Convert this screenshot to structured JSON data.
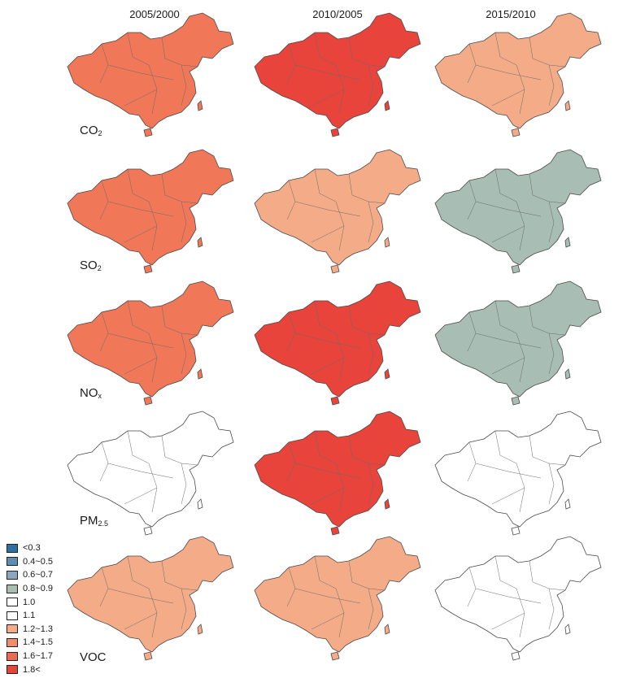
{
  "column_titles": [
    "2005/2000",
    "2010/2005",
    "2015/2010"
  ],
  "rows": [
    {
      "label_main": "CO",
      "label_sub": "2",
      "fills": [
        "#F07858",
        "#E8443B",
        "#F4AC88"
      ]
    },
    {
      "label_main": "SO",
      "label_sub": "2",
      "fills": [
        "#F07858",
        "#F4AC88",
        "#A8BDB3"
      ]
    },
    {
      "label_main": "NO",
      "label_sub": "x",
      "fills": [
        "#F07858",
        "#E8443B",
        "#A8BDB3"
      ]
    },
    {
      "label_main": "PM",
      "label_sub": "2.5",
      "fills": [
        "#FFFFFF",
        "#E8443B",
        "#FFFFFF"
      ]
    },
    {
      "label_main": "VOC",
      "label_sub": "",
      "fills": [
        "#F4AC88",
        "#F4AC88",
        "#FFFFFF"
      ]
    }
  ],
  "legend": [
    {
      "label": "<0.3",
      "color": "#2E6FA6"
    },
    {
      "label": "0.4~0.5",
      "color": "#5E8DB3"
    },
    {
      "label": "0.6~0.7",
      "color": "#8AA7BD"
    },
    {
      "label": "0.8~0.9",
      "color": "#A8BDB3"
    },
    {
      "label": "1.0",
      "color": "#FFFFFF"
    },
    {
      "label": "1.1",
      "color": "#FFFFFF"
    },
    {
      "label": "1.2~1.3",
      "color": "#F4AC88"
    },
    {
      "label": "1.4~1.5",
      "color": "#F08C6C"
    },
    {
      "label": "1.6~1.7",
      "color": "#EC6A50"
    },
    {
      "label": "1.8<",
      "color": "#E8443B"
    }
  ]
}
